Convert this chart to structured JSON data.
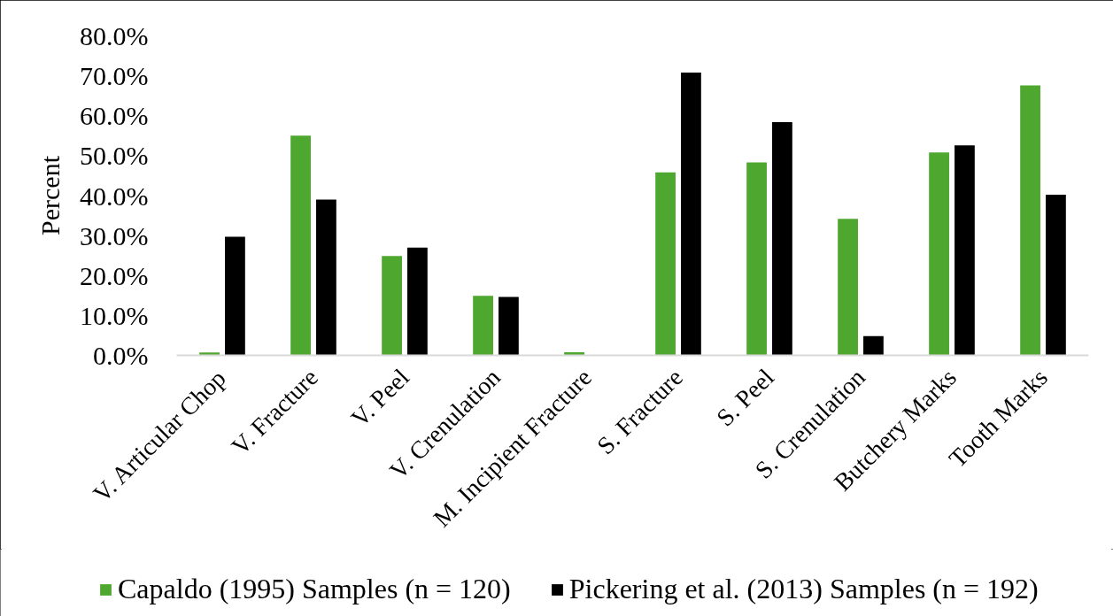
{
  "chart_data": {
    "type": "bar",
    "ylabel": "Percent",
    "categories": [
      "V. Articular Chop",
      "V. Fracture",
      "V. Peel",
      "V. Crenulation",
      "M. Incipient Fracture",
      "S. Fracture",
      "S. Peel",
      "S. Crenulation",
      "Butchery Marks",
      "Tooth Marks"
    ],
    "series": [
      {
        "name": "Capaldo (1995) Samples (n = 120)",
        "color": "#4ea72e",
        "values": [
          0.7,
          55.0,
          24.9,
          14.9,
          0.8,
          45.8,
          48.3,
          34.2,
          50.8,
          67.6
        ]
      },
      {
        "name": "Pickering et al. (2013) Samples (n = 192)",
        "color": "#000000",
        "values": [
          29.7,
          39.0,
          27.0,
          14.6,
          0,
          70.8,
          58.4,
          4.8,
          52.6,
          40.2
        ]
      }
    ],
    "ylim": [
      0,
      80
    ],
    "yticks": [
      {
        "value": 0,
        "label": "0.0%"
      },
      {
        "value": 10,
        "label": "10.0%"
      },
      {
        "value": 20,
        "label": "20.0%"
      },
      {
        "value": 30,
        "label": "30.0%"
      },
      {
        "value": 40,
        "label": "40.0%"
      },
      {
        "value": 50,
        "label": "50.0%"
      },
      {
        "value": 60,
        "label": "60.0%"
      },
      {
        "value": 70,
        "label": "70.0%"
      },
      {
        "value": 80,
        "label": "80.0%"
      }
    ],
    "grid": false,
    "legend": "bottom"
  }
}
